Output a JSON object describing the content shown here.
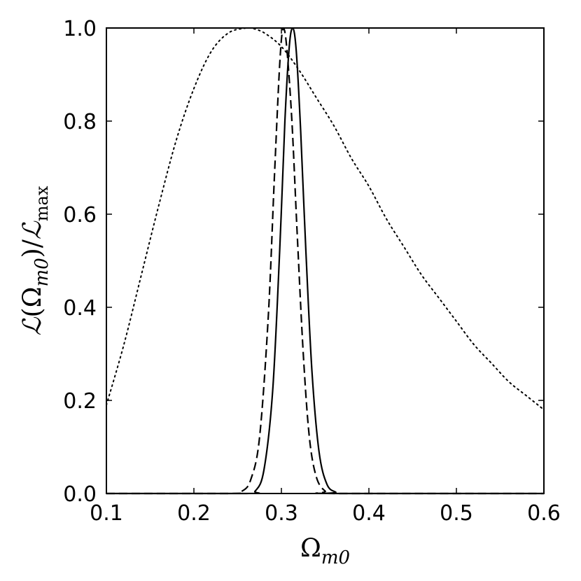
{
  "chart_data": {
    "type": "line",
    "xlim": [
      0.1,
      0.6
    ],
    "ylim": [
      0.0,
      1.0
    ],
    "xticks": [
      "0.1",
      "0.2",
      "0.3",
      "0.4",
      "0.5",
      "0.6"
    ],
    "yticks": [
      "0.0",
      "0.2",
      "0.4",
      "0.6",
      "0.8",
      "1.0"
    ],
    "xlabel": {
      "base": "Ω",
      "sub": "m0"
    },
    "ylabel": {
      "script_l": "ℒ",
      "open": "(",
      "omega": "Ω",
      "sub": "m0",
      "close": ")/",
      "script_l2": "ℒ",
      "sub2": "max"
    },
    "grid": false,
    "legend": "none",
    "series": [
      {
        "style": "dotted",
        "color": "#000000",
        "x": [
          0.1,
          0.12,
          0.14,
          0.16,
          0.18,
          0.2,
          0.22,
          0.24,
          0.26,
          0.265,
          0.28,
          0.3,
          0.32,
          0.34,
          0.36,
          0.38,
          0.4,
          0.42,
          0.44,
          0.46,
          0.48,
          0.5,
          0.52,
          0.54,
          0.56,
          0.58,
          0.6
        ],
        "y": [
          0.19,
          0.32,
          0.47,
          0.62,
          0.76,
          0.87,
          0.95,
          0.99,
          1.0,
          1.0,
          0.99,
          0.96,
          0.91,
          0.85,
          0.79,
          0.72,
          0.66,
          0.59,
          0.53,
          0.47,
          0.42,
          0.37,
          0.32,
          0.28,
          0.24,
          0.21,
          0.18
        ]
      },
      {
        "style": "dashed",
        "color": "#000000",
        "x": [
          0.1,
          0.24,
          0.255,
          0.265,
          0.275,
          0.285,
          0.292,
          0.298,
          0.302,
          0.306,
          0.312,
          0.318,
          0.325,
          0.332,
          0.34,
          0.35,
          0.36,
          0.6
        ],
        "y": [
          0.0,
          0.0,
          0.005,
          0.03,
          0.12,
          0.38,
          0.68,
          0.92,
          1.0,
          0.96,
          0.8,
          0.56,
          0.3,
          0.12,
          0.035,
          0.005,
          0.0,
          0.0
        ]
      },
      {
        "style": "solid",
        "color": "#000000",
        "x": [
          0.1,
          0.26,
          0.27,
          0.28,
          0.29,
          0.298,
          0.304,
          0.309,
          0.313,
          0.317,
          0.322,
          0.328,
          0.335,
          0.343,
          0.352,
          0.362,
          0.37,
          0.6
        ],
        "y": [
          0.0,
          0.0,
          0.005,
          0.05,
          0.22,
          0.52,
          0.8,
          0.96,
          1.0,
          0.95,
          0.78,
          0.52,
          0.26,
          0.09,
          0.02,
          0.003,
          0.0,
          0.0
        ]
      }
    ]
  }
}
